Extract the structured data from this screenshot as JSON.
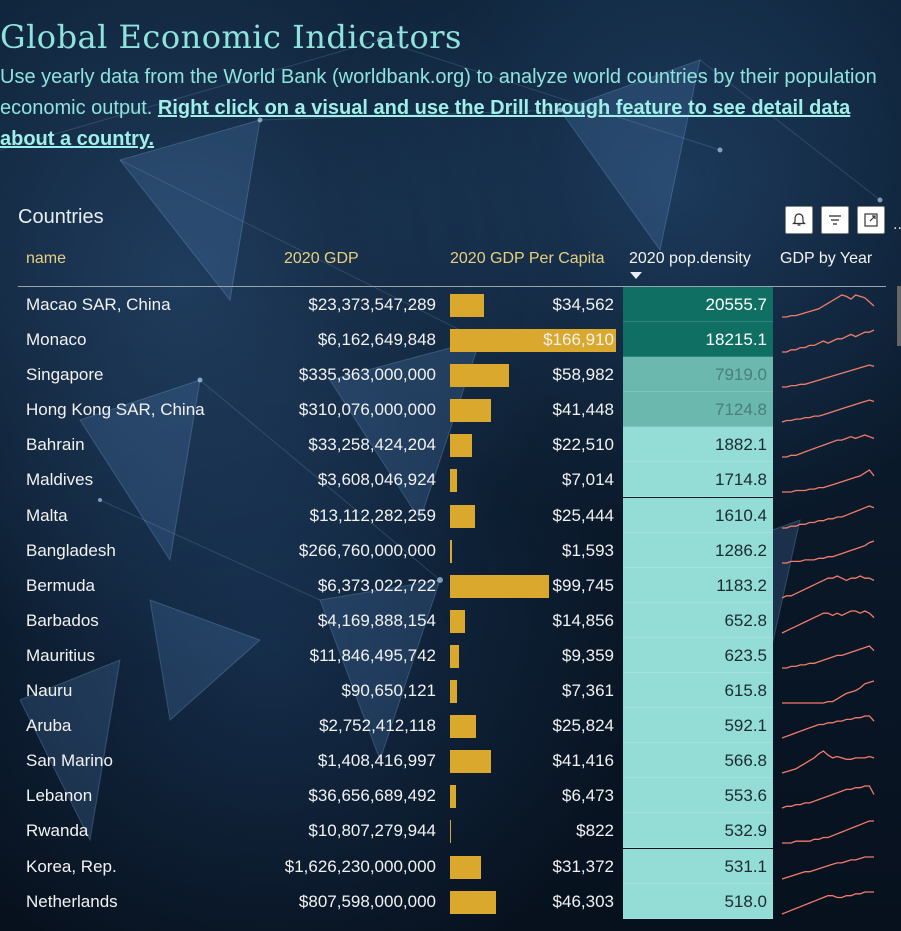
{
  "header": {
    "title": "Global Economic  Indicators",
    "subtitle": "Use yearly data from the World Bank (worldbank.org) to analyze world countries by their population economic output. ",
    "link_text": "Right click on a visual and use the Drill through feature to see detail data about a country."
  },
  "visual": {
    "title": "Countries",
    "toolbar": {
      "bell_icon": "bell-icon",
      "filter_icon": "filter-icon",
      "focus_icon": "focus-mode-icon",
      "more": "..."
    }
  },
  "columns": {
    "name": "name",
    "gdp": "2020 GDP",
    "per_capita": "2020 GDP Per Capita",
    "density": "2020 pop.density",
    "gdp_by_year": "GDP by Year"
  },
  "colors": {
    "bar": "#d9a82c",
    "dens_dark": "#0f6f62",
    "dens_mid": "#6ab8ae",
    "dens_light": "#93ddd6",
    "spark": "#f27c6b"
  },
  "rows": [
    {
      "name": "Macao SAR, China",
      "gdp": "$23,373,547,289",
      "pc": "$34,562",
      "pc_value": 34562,
      "dens": "20555.7",
      "tier": "dark",
      "spark": [
        2,
        2,
        3,
        3,
        4,
        5,
        6,
        7,
        8,
        10,
        12,
        14,
        16,
        18,
        17,
        15,
        18,
        17,
        16,
        13,
        10
      ]
    },
    {
      "name": "Monaco",
      "gdp": "$6,162,649,848",
      "pc": "$166,910",
      "pc_value": 166910,
      "dens": "18215.1",
      "tier": "dark",
      "spark": [
        3,
        3,
        4,
        4,
        5,
        5,
        6,
        6,
        7,
        8,
        7,
        8,
        9,
        9,
        10,
        11,
        10,
        11,
        12,
        12,
        13
      ]
    },
    {
      "name": "Singapore",
      "gdp": "$335,363,000,000",
      "pc": "$58,982",
      "pc_value": 58982,
      "dens": "7919.0",
      "tier": "mid",
      "spark": [
        2,
        2,
        3,
        3,
        4,
        4,
        5,
        6,
        7,
        8,
        9,
        10,
        11,
        12,
        13,
        14,
        15,
        16,
        17,
        18,
        17
      ]
    },
    {
      "name": "Hong Kong SAR, China",
      "gdp": "$310,076,000,000",
      "pc": "$41,448",
      "pc_value": 41448,
      "dens": "7124.8",
      "tier": "mid",
      "spark": [
        3,
        4,
        4,
        5,
        5,
        6,
        6,
        7,
        7,
        8,
        9,
        10,
        11,
        12,
        13,
        14,
        15,
        16,
        17,
        18,
        17
      ]
    },
    {
      "name": "Bahrain",
      "gdp": "$33,258,424,204",
      "pc": "$22,510",
      "pc_value": 22510,
      "dens": "1882.1",
      "tier": "light",
      "spark": [
        2,
        2,
        3,
        3,
        4,
        5,
        6,
        7,
        8,
        9,
        10,
        11,
        12,
        12,
        13,
        14,
        13,
        14,
        15,
        14,
        13
      ]
    },
    {
      "name": "Maldives",
      "gdp": "$3,608,046,924",
      "pc": "$7,014",
      "pc_value": 7014,
      "dens": "1714.8",
      "tier": "light",
      "spark": [
        1,
        1,
        1,
        2,
        2,
        2,
        3,
        3,
        4,
        4,
        5,
        6,
        7,
        8,
        9,
        10,
        11,
        12,
        14,
        16,
        12
      ]
    },
    {
      "name": "Malta",
      "gdp": "$13,112,282,259",
      "pc": "$25,444",
      "pc_value": 25444,
      "dens": "1610.4",
      "tier": "light",
      "spark": [
        3,
        3,
        4,
        4,
        5,
        5,
        6,
        6,
        7,
        7,
        8,
        8,
        9,
        9,
        10,
        11,
        12,
        13,
        14,
        15,
        14
      ]
    },
    {
      "name": "Bangladesh",
      "gdp": "$266,760,000,000",
      "pc": "$1,593",
      "pc_value": 1593,
      "dens": "1286.2",
      "tier": "light",
      "spark": [
        1,
        1,
        2,
        2,
        2,
        3,
        3,
        3,
        4,
        4,
        5,
        5,
        6,
        7,
        8,
        9,
        10,
        11,
        12,
        14,
        15
      ]
    },
    {
      "name": "Bermuda",
      "gdp": "$6,373,022,722",
      "pc": "$99,745",
      "pc_value": 99745,
      "dens": "1183.2",
      "tier": "light",
      "spark": [
        3,
        4,
        4,
        5,
        6,
        7,
        8,
        9,
        10,
        11,
        12,
        12,
        13,
        12,
        11,
        12,
        12,
        13,
        12,
        12,
        11
      ]
    },
    {
      "name": "Barbados",
      "gdp": "$4,169,888,154",
      "pc": "$14,856",
      "pc_value": 14856,
      "dens": "652.8",
      "tier": "light",
      "spark": [
        3,
        4,
        5,
        6,
        7,
        8,
        9,
        10,
        11,
        12,
        12,
        11,
        12,
        11,
        12,
        13,
        13,
        12,
        13,
        12,
        10
      ]
    },
    {
      "name": "Mauritius",
      "gdp": "$11,846,495,742",
      "pc": "$9,359",
      "pc_value": 9359,
      "dens": "623.5",
      "tier": "light",
      "spark": [
        2,
        2,
        3,
        3,
        4,
        4,
        5,
        5,
        6,
        7,
        8,
        9,
        10,
        10,
        11,
        12,
        13,
        14,
        15,
        16,
        13
      ]
    },
    {
      "name": "Nauru",
      "gdp": "$90,650,121",
      "pc": "$7,361",
      "pc_value": 7361,
      "dens": "615.8",
      "tier": "light",
      "spark": [
        1,
        1,
        1,
        1,
        1,
        1,
        1,
        1,
        1,
        1,
        2,
        2,
        4,
        6,
        8,
        9,
        10,
        12,
        15,
        16,
        17
      ]
    },
    {
      "name": "Aruba",
      "gdp": "$2,752,412,118",
      "pc": "$25,824",
      "pc_value": 25824,
      "dens": "592.1",
      "tier": "light",
      "spark": [
        2,
        3,
        4,
        5,
        6,
        7,
        8,
        9,
        10,
        10,
        11,
        11,
        12,
        12,
        13,
        13,
        14,
        14,
        15,
        15,
        12
      ]
    },
    {
      "name": "San Marino",
      "gdp": "$1,408,416,997",
      "pc": "$41,416",
      "pc_value": 41416,
      "dens": "566.8",
      "tier": "light",
      "spark": [
        1,
        2,
        3,
        4,
        6,
        8,
        10,
        12,
        15,
        17,
        14,
        12,
        13,
        12,
        11,
        11,
        12,
        12,
        12,
        13,
        12
      ]
    },
    {
      "name": "Lebanon",
      "gdp": "$36,656,689,492",
      "pc": "$6,473",
      "pc_value": 6473,
      "dens": "553.6",
      "tier": "light",
      "spark": [
        2,
        3,
        3,
        4,
        4,
        5,
        5,
        6,
        7,
        8,
        9,
        10,
        11,
        12,
        13,
        13,
        14,
        14,
        15,
        15,
        10
      ]
    },
    {
      "name": "Rwanda",
      "gdp": "$10,807,279,944",
      "pc": "$822",
      "pc_value": 822,
      "dens": "532.9",
      "tier": "light",
      "spark": [
        1,
        1,
        1,
        2,
        2,
        2,
        2,
        3,
        3,
        4,
        4,
        5,
        6,
        7,
        8,
        9,
        10,
        11,
        12,
        13,
        13
      ]
    },
    {
      "name": "Korea, Rep.",
      "gdp": "$1,626,230,000,000",
      "pc": "$31,372",
      "pc_value": 31372,
      "dens": "531.1",
      "tier": "light",
      "spark": [
        2,
        3,
        4,
        5,
        6,
        7,
        7,
        8,
        9,
        10,
        11,
        12,
        13,
        13,
        14,
        15,
        15,
        16,
        17,
        17,
        17
      ]
    },
    {
      "name": "Netherlands",
      "gdp": "$807,598,000,000",
      "pc": "$46,303",
      "pc_value": 46303,
      "dens": "518.0",
      "tier": "light",
      "spark": [
        4,
        5,
        6,
        7,
        8,
        9,
        10,
        11,
        12,
        13,
        14,
        14,
        13,
        13,
        14,
        14,
        15,
        15,
        16,
        16,
        16
      ]
    }
  ]
}
